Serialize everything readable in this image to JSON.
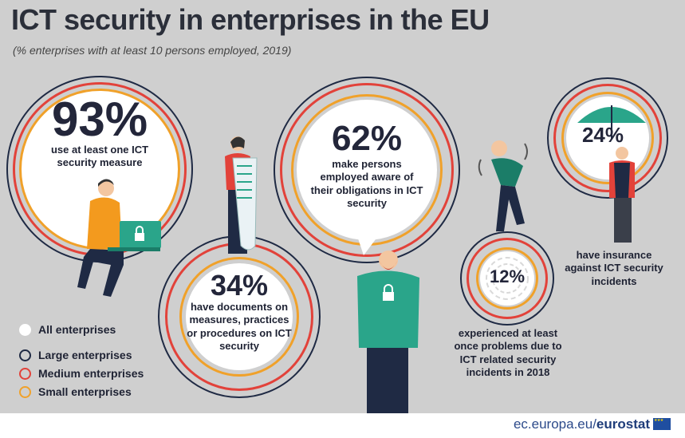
{
  "header": {
    "title": "ICT security in enterprises in the EU",
    "subtitle": "(% enterprises with at least 10 persons employed, 2019)"
  },
  "stats": [
    {
      "value": "93%",
      "label": "use at least one ICT security measure"
    },
    {
      "value": "34%",
      "label": "have documents on measures, practices or procedures on ICT security"
    },
    {
      "value": "62%",
      "label": "make persons employed aware of their obligations in ICT security"
    },
    {
      "value": "12%",
      "label": "experienced at least once problems due to ICT related security incidents in 2018"
    },
    {
      "value": "24%",
      "label": "have insurance against ICT security incidents"
    }
  ],
  "legend": [
    {
      "label": "All enterprises",
      "color": "#ffffff"
    },
    {
      "label": "Large enterprises",
      "color": "#1f2a44"
    },
    {
      "label": "Medium enterprises",
      "color": "#e2423a"
    },
    {
      "label": "Small enterprises",
      "color": "#f0a12a"
    }
  ],
  "footer": {
    "source_prefix": "ec.europa.eu/",
    "source_brand": "eurostat"
  },
  "colors": {
    "background": "#cfcfcf",
    "large": "#1f2a44",
    "medium": "#e2423a",
    "small": "#f0a12a",
    "all": "#ffffff",
    "person_green": "#2aa58a",
    "person_orange": "#f39a1e"
  },
  "icons": [
    "laptop-icon",
    "lock-icon",
    "umbrella-icon",
    "target-icon",
    "document-scroll-icon"
  ]
}
